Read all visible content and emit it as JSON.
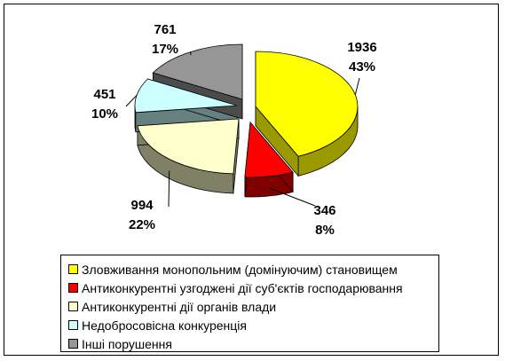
{
  "chart_data": {
    "type": "pie",
    "style": "3d-exploded",
    "slices": [
      {
        "name": "Зловживання монопольним (домінуючим) становищем",
        "value": 1936,
        "percent": "43%",
        "color": "#FFFF00",
        "side": "#9A9A00"
      },
      {
        "name": "Антиконкурентні узгоджені дії суб'єктів господарювання",
        "value": 346,
        "percent": "8%",
        "color": "#FF0000",
        "side": "#800000"
      },
      {
        "name": "Антиконкурентні дії органів влади",
        "value": 994,
        "percent": "22%",
        "color": "#FFFFCC",
        "side": "#808066"
      },
      {
        "name": "Недобросовісна конкуренція",
        "value": 451,
        "percent": "10%",
        "color": "#CCFFFF",
        "side": "#668080"
      },
      {
        "name": "Інші порушення",
        "value": 761,
        "percent": "17%",
        "color": "#969696",
        "side": "#4B4B4B"
      }
    ],
    "legend_position": "bottom"
  }
}
